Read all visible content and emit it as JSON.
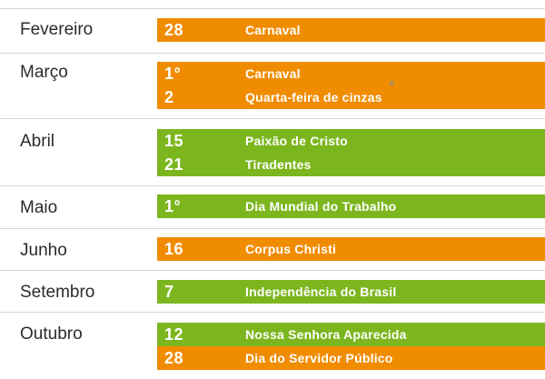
{
  "colors": {
    "orange": "#f08c00",
    "green": "#7cb61e",
    "divider": "#d7d7d7",
    "asterisk": "#8c8c8c"
  },
  "months": [
    {
      "name": "Fevereiro",
      "holidays": [
        {
          "day": "28",
          "name": "Carnaval",
          "color": "orange"
        }
      ]
    },
    {
      "name": "Março",
      "holidays": [
        {
          "day": "1°",
          "name": "Carnaval",
          "color": "orange"
        },
        {
          "day": "2",
          "name": "Quarta-feira de cinzas",
          "color": "orange"
        }
      ]
    },
    {
      "name": "Abril",
      "holidays": [
        {
          "day": "15",
          "name": "Paixão de Cristo",
          "color": "green"
        },
        {
          "day": "21",
          "name": "Tiradentes",
          "color": "green"
        }
      ]
    },
    {
      "name": "Maio",
      "holidays": [
        {
          "day": "1°",
          "name": "Dia Mundial do Trabalho",
          "color": "green"
        }
      ]
    },
    {
      "name": "Junho",
      "holidays": [
        {
          "day": "16",
          "name": "Corpus Christi",
          "color": "orange"
        }
      ]
    },
    {
      "name": "Setembro",
      "holidays": [
        {
          "day": "7",
          "name": "Independência do Brasil",
          "color": "green"
        }
      ]
    },
    {
      "name": "Outubro",
      "holidays": [
        {
          "day": "12",
          "name": "Nossa Senhora Aparecida",
          "color": "green"
        },
        {
          "day": "28",
          "name": "Dia do Servidor Público",
          "color": "orange"
        }
      ]
    }
  ],
  "footnote_mark": "*"
}
